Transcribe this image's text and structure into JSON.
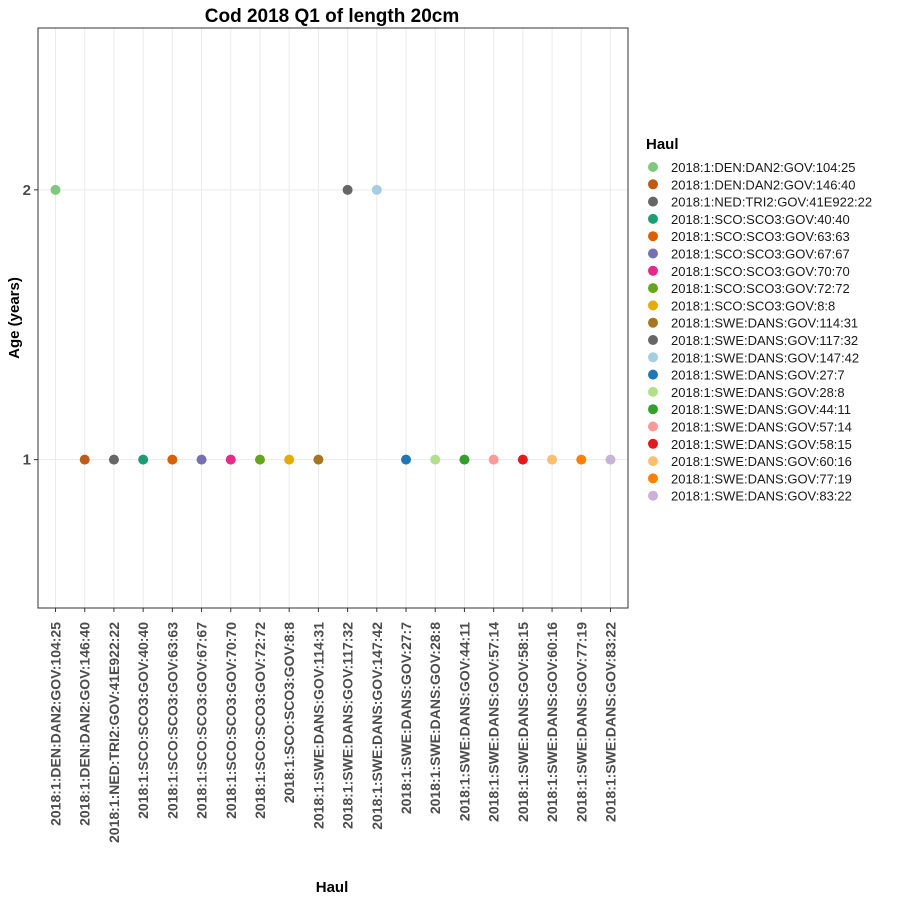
{
  "chart_data": {
    "type": "scatter",
    "title": "Cod 2018 Q1 of length 20cm",
    "xlabel": "Haul",
    "ylabel": "Age (years)",
    "ylim": [
      0.45,
      2.6
    ],
    "yticks": [
      1,
      2
    ],
    "grid": true,
    "legend_title": "Haul",
    "legend_position": "right",
    "categories": [
      "2018:1:DEN:DAN2:GOV:104:25",
      "2018:1:DEN:DAN2:GOV:146:40",
      "2018:1:NED:TRI2:GOV:41E922:22",
      "2018:1:SCO:SCO3:GOV:40:40",
      "2018:1:SCO:SCO3:GOV:63:63",
      "2018:1:SCO:SCO3:GOV:67:67",
      "2018:1:SCO:SCO3:GOV:70:70",
      "2018:1:SCO:SCO3:GOV:72:72",
      "2018:1:SCO:SCO3:GOV:8:8",
      "2018:1:SWE:DANS:GOV:114:31",
      "2018:1:SWE:DANS:GOV:117:32",
      "2018:1:SWE:DANS:GOV:147:42",
      "2018:1:SWE:DANS:GOV:27:7",
      "2018:1:SWE:DANS:GOV:28:8",
      "2018:1:SWE:DANS:GOV:44:11",
      "2018:1:SWE:DANS:GOV:57:14",
      "2018:1:SWE:DANS:GOV:58:15",
      "2018:1:SWE:DANS:GOV:60:16",
      "2018:1:SWE:DANS:GOV:77:19",
      "2018:1:SWE:DANS:GOV:83:22"
    ],
    "values": [
      2,
      1,
      1,
      1,
      1,
      1,
      1,
      1,
      1,
      1,
      2,
      2,
      1,
      1,
      1,
      1,
      1,
      1,
      1,
      1
    ],
    "colors": [
      "#7FC97F",
      "#BF5B17",
      "#666666",
      "#1B9E77",
      "#D95F02",
      "#7570B3",
      "#E7298A",
      "#66A61E",
      "#E6AB02",
      "#A6761D",
      "#666666",
      "#A6CEE3",
      "#1F78B4",
      "#B2DF8A",
      "#33A02C",
      "#FB9A99",
      "#E31A1C",
      "#FDBF6F",
      "#FF7F00",
      "#CAB2D6"
    ]
  }
}
